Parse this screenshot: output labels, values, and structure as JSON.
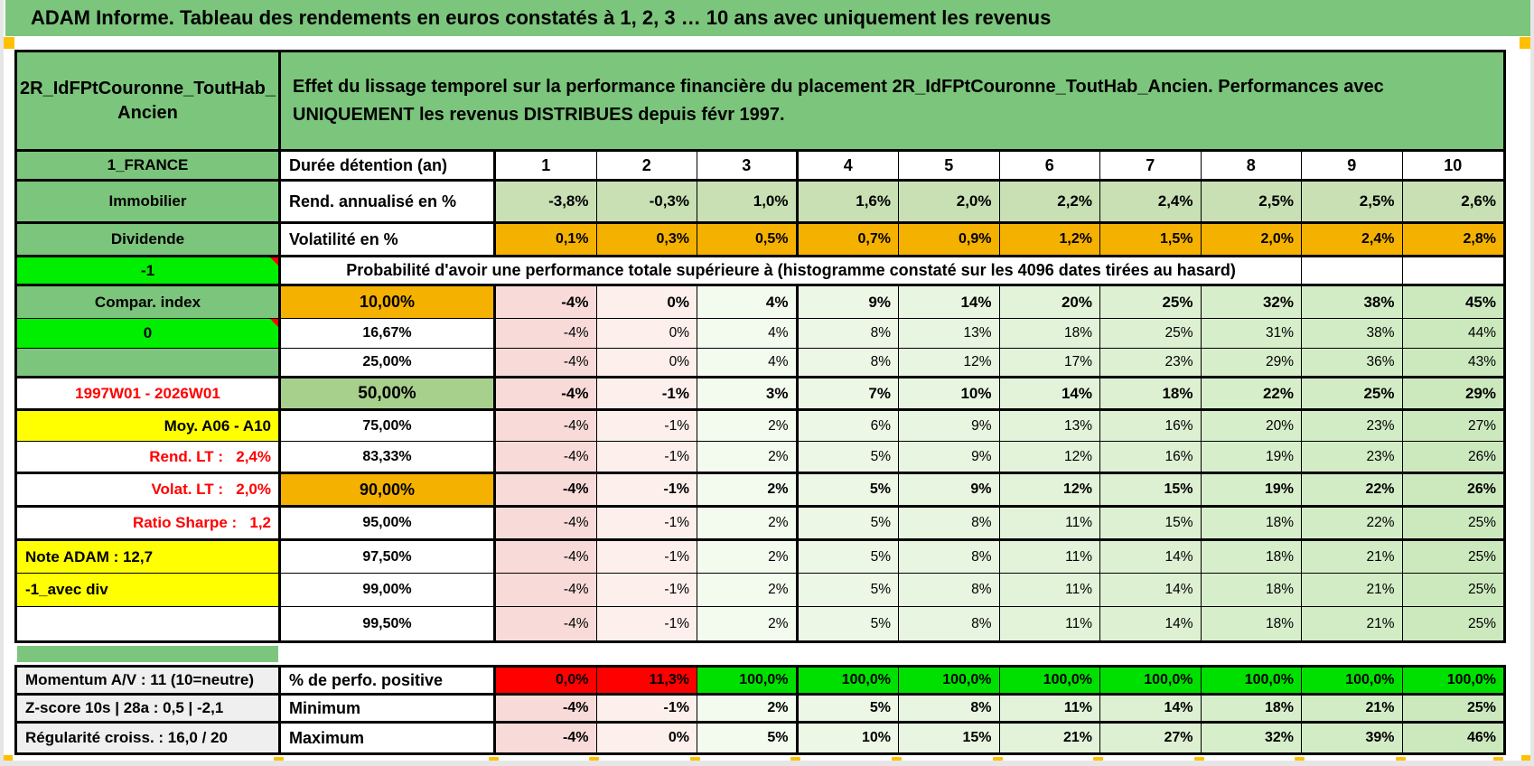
{
  "title": "ADAM Informe. Tableau des rendements en euros constatés à 1, 2, 3 … 10 ans avec uniquement les revenus",
  "sheet": {
    "fund_name": "2R_IdFPtCouronne_ToutHab_Ancien",
    "description": "Effet du lissage temporel sur la performance financière du placement 2R_IdFPtCouronne_ToutHab_Ancien. Performances avec UNIQUEMENT les revenus DISTRIBUES depuis févr 1997.",
    "probability_note": "Probabilité d'avoir une performance totale supérieure à (histogramme constaté sur les 4096 dates tirées au hasard)",
    "rows": [
      {
        "id": "duree",
        "label": "1_FRANCE",
        "sub": "Durée détention (an)",
        "cells": [
          "1",
          "2",
          "3",
          "4",
          "5",
          "6",
          "7",
          "8",
          "9",
          "10"
        ]
      },
      {
        "id": "rend",
        "label": "Immobilier",
        "sub": "Rend. annualisé en %",
        "cells": [
          "-3,8%",
          "-0,3%",
          "1,0%",
          "1,6%",
          "2,0%",
          "2,2%",
          "2,4%",
          "2,5%",
          "2,5%",
          "2,6%"
        ]
      },
      {
        "id": "volat",
        "label": "Dividende",
        "sub": "Volatilité en %",
        "cells": [
          "0,1%",
          "0,3%",
          "0,5%",
          "0,7%",
          "0,9%",
          "1,2%",
          "1,5%",
          "2,0%",
          "2,4%",
          "2,8%"
        ]
      },
      {
        "id": "probab",
        "label": "-1",
        "cells": [
          "",
          ""
        ]
      },
      {
        "id": "q10",
        "label": "Compar. index",
        "sub": "10,00%",
        "cells": [
          "-4%",
          "0%",
          "4%",
          "9%",
          "14%",
          "20%",
          "25%",
          "32%",
          "38%",
          "45%"
        ]
      },
      {
        "id": "q16",
        "label": "0",
        "sub": "16,67%",
        "cells": [
          "-4%",
          "0%",
          "4%",
          "8%",
          "13%",
          "18%",
          "25%",
          "31%",
          "38%",
          "44%"
        ]
      },
      {
        "id": "q25",
        "label": "",
        "sub": "25,00%",
        "cells": [
          "-4%",
          "0%",
          "4%",
          "8%",
          "12%",
          "17%",
          "23%",
          "29%",
          "36%",
          "43%"
        ]
      },
      {
        "id": "q50",
        "label": "1997W01 - 2026W01",
        "sub": "50,00%",
        "cells": [
          "-4%",
          "-1%",
          "3%",
          "7%",
          "10%",
          "14%",
          "18%",
          "22%",
          "25%",
          "29%"
        ]
      },
      {
        "id": "q75",
        "label": "Moy. A06 - A10",
        "sub": "75,00%",
        "cells": [
          "-4%",
          "-1%",
          "2%",
          "6%",
          "9%",
          "13%",
          "16%",
          "20%",
          "23%",
          "27%"
        ]
      },
      {
        "id": "q83",
        "label": "Rend. LT :   2,4%",
        "sub": "83,33%",
        "cells": [
          "-4%",
          "-1%",
          "2%",
          "5%",
          "9%",
          "12%",
          "16%",
          "19%",
          "23%",
          "26%"
        ]
      },
      {
        "id": "q90",
        "label": "Volat. LT :   2,0%",
        "sub": "90,00%",
        "cells": [
          "-4%",
          "-1%",
          "2%",
          "5%",
          "9%",
          "12%",
          "15%",
          "19%",
          "22%",
          "26%"
        ]
      },
      {
        "id": "q95",
        "label": "Ratio Sharpe :   1,2",
        "sub": "95,00%",
        "cells": [
          "-4%",
          "-1%",
          "2%",
          "5%",
          "8%",
          "11%",
          "15%",
          "18%",
          "22%",
          "25%"
        ]
      },
      {
        "id": "q97",
        "label": "Note ADAM : 12,7",
        "sub": "97,50%",
        "cells": [
          "-4%",
          "-1%",
          "2%",
          "5%",
          "8%",
          "11%",
          "14%",
          "18%",
          "21%",
          "25%"
        ]
      },
      {
        "id": "q99",
        "label": "-1_avec div",
        "sub": "99,00%",
        "cells": [
          "-4%",
          "-1%",
          "2%",
          "5%",
          "8%",
          "11%",
          "14%",
          "18%",
          "21%",
          "25%"
        ]
      },
      {
        "id": "q995",
        "label": "",
        "sub": "99,50%",
        "cells": [
          "-4%",
          "-1%",
          "2%",
          "5%",
          "8%",
          "11%",
          "14%",
          "18%",
          "21%",
          "25%"
        ]
      }
    ],
    "bottom_rows": [
      {
        "id": "pos",
        "label": "Momentum A/V : 11 (10=neutre)",
        "sub": "% de perfo. positive",
        "cells": [
          "0,0%",
          "11,3%",
          "100,0%",
          "100,0%",
          "100,0%",
          "100,0%",
          "100,0%",
          "100,0%",
          "100,0%",
          "100,0%"
        ]
      },
      {
        "id": "min",
        "label": "Z-score 10s | 28a : 0,5 | -2,1",
        "sub": "Minimum",
        "cells": [
          "-4%",
          "-1%",
          "2%",
          "5%",
          "8%",
          "11%",
          "14%",
          "18%",
          "21%",
          "25%"
        ]
      },
      {
        "id": "max",
        "label": "Régularité croiss. : 16,0 / 20",
        "sub": "Maximum",
        "cells": [
          "-4%",
          "0%",
          "5%",
          "10%",
          "15%",
          "21%",
          "27%",
          "32%",
          "39%",
          "46%"
        ]
      }
    ]
  },
  "colors": {
    "band_green": "#7CC57C",
    "cell_green": "#7CC57C",
    "light_green": "#C8E0B4",
    "mid_green": "#A8D08D",
    "bright_green": "#00EF00",
    "pos_green": "#00E000",
    "orange": "#F5B100",
    "red": "#FF0000",
    "yellow": "#FFFF00",
    "label_grey": "#EFEFEF",
    "marker_orange": "#FFC000",
    "gradient": [
      "#F8DBD8",
      "#FCEFEC",
      "#F3FAEE",
      "#EDF7E6",
      "#E8F5E0",
      "#E2F3D9",
      "#DDF0D2",
      "#D7EECB",
      "#D2ECC5",
      "#CCE9BE"
    ]
  }
}
